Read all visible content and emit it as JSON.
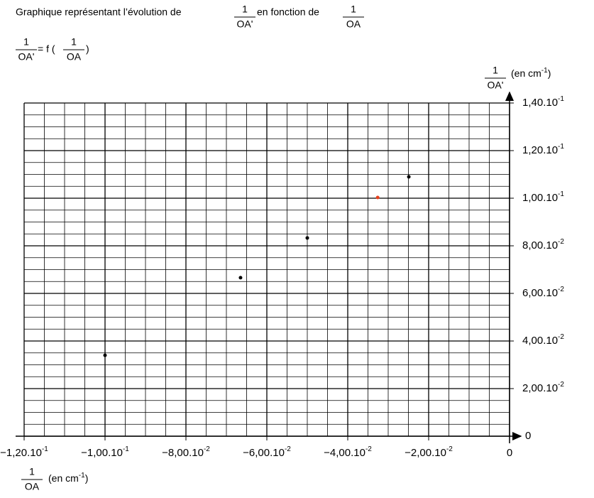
{
  "chart_data": {
    "type": "scatter",
    "title": [
      "Graphique représentant l’évolution de",
      "en fonction de"
    ],
    "title_fractions": [
      {
        "num": "1",
        "den": "OA'"
      },
      {
        "num": "1",
        "den": "OA"
      }
    ],
    "relation": {
      "lhs": {
        "num": "1",
        "den": "OA'"
      },
      "eq": "= f (",
      "rhs": {
        "num": "1",
        "den": "OA"
      },
      "close": ")"
    },
    "ylabel": {
      "num": "1",
      "den": "OA'",
      "unit": "(en cm",
      "unit_exp": "-1",
      "unit_close": ")"
    },
    "xlabel": {
      "num": "1",
      "den": "OA",
      "unit": "(en cm",
      "unit_exp": "-1",
      "unit_close": ")"
    },
    "x": [
      -0.1,
      -0.0665,
      -0.05,
      -0.0249,
      -0.0326
    ],
    "values": [
      0.034,
      0.0666,
      0.0833,
      0.109,
      0.1003
    ],
    "colors": [
      "#000000",
      "#000000",
      "#000000",
      "#000000",
      "#e8401c"
    ],
    "xlim": [
      -0.12,
      0
    ],
    "ylim": [
      0,
      0.14
    ],
    "xticks": [
      {
        "value": -0.12,
        "label": "−1,20.10",
        "exponent": "-1"
      },
      {
        "value": -0.1,
        "label": "−1,00.10",
        "exponent": "-1"
      },
      {
        "value": -0.08,
        "label": "−8,00.10",
        "exponent": "-2"
      },
      {
        "value": -0.06,
        "label": "−6,00.10",
        "exponent": "-2"
      },
      {
        "value": -0.04,
        "label": "−4,00.10",
        "exponent": "-2"
      },
      {
        "value": -0.02,
        "label": "−2,00.10",
        "exponent": "-2"
      },
      0
    ],
    "yticks": [
      0,
      {
        "value": 0.02,
        "label": "2,00.10",
        "exponent": "-2"
      },
      {
        "value": 0.04,
        "label": "4,00.10",
        "exponent": "-2"
      },
      {
        "value": 0.06,
        "label": "6,00.10",
        "exponent": "-2"
      },
      {
        "value": 0.08,
        "label": "8,00.10",
        "exponent": "-2"
      },
      {
        "value": 0.1,
        "label": "1,00.10",
        "exponent": "-1"
      },
      {
        "value": 0.12,
        "label": "1,20.10",
        "exponent": "-1"
      },
      {
        "value": 0.14,
        "label": "1,40.10",
        "exponent": "-1"
      }
    ],
    "grid": true,
    "minor_grid_divisions": 4
  }
}
